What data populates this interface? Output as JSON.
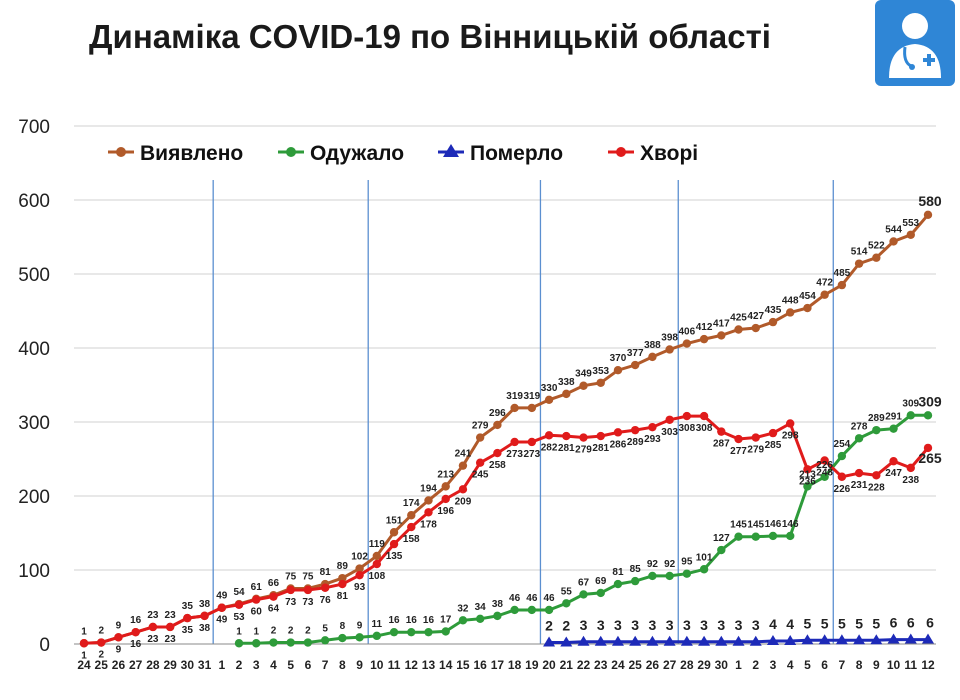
{
  "title": "Динаміка COVID-19 по Вінницькій області",
  "logo": {
    "icon": "doctor-icon",
    "bg_color": "#2f86d6"
  },
  "chart_data": {
    "type": "line",
    "title": "Динаміка COVID-19 по Вінницькій області",
    "xlabel": "",
    "ylabel": "",
    "ylim": [
      0,
      700
    ],
    "yticks": [
      0,
      100,
      200,
      300,
      400,
      500,
      600,
      700
    ],
    "grid": true,
    "legend_position": "top-left",
    "x": [
      "24",
      "25",
      "26",
      "27",
      "28",
      "29",
      "30",
      "31",
      "1",
      "2",
      "3",
      "4",
      "5",
      "6",
      "7",
      "8",
      "9",
      "10",
      "11",
      "12",
      "13",
      "14",
      "15",
      "16",
      "17",
      "18",
      "19",
      "20",
      "21",
      "22",
      "23",
      "24",
      "25",
      "26",
      "27",
      "28",
      "29",
      "30",
      "1",
      "2",
      "3",
      "4",
      "5",
      "6",
      "7",
      "8",
      "9",
      "10",
      "11",
      "12"
    ],
    "period_boundaries": [
      "1",
      "1",
      "20",
      "28",
      "7"
    ],
    "series": [
      {
        "name": "Виявлено",
        "color": "#b15a2a",
        "marker": "circle",
        "values": [
          1,
          2,
          9,
          16,
          23,
          23,
          35,
          38,
          49,
          54,
          61,
          66,
          75,
          75,
          81,
          89,
          102,
          119,
          151,
          174,
          194,
          213,
          241,
          279,
          296,
          319,
          319,
          330,
          338,
          349,
          353,
          370,
          377,
          388,
          398,
          406,
          412,
          417,
          425,
          427,
          435,
          448,
          454,
          472,
          485,
          514,
          522,
          544,
          553,
          580
        ]
      },
      {
        "name": "Одужало",
        "color": "#2e9b3a",
        "marker": "circle",
        "values": [
          null,
          null,
          null,
          null,
          null,
          null,
          null,
          null,
          null,
          1,
          1,
          2,
          2,
          2,
          5,
          8,
          9,
          11,
          16,
          16,
          16,
          17,
          32,
          34,
          38,
          46,
          46,
          46,
          55,
          67,
          69,
          81,
          85,
          92,
          92,
          95,
          101,
          127,
          145,
          145,
          146,
          146,
          213,
          226,
          254,
          278,
          289,
          291,
          309,
          309
        ]
      },
      {
        "name": "Померло",
        "color": "#1d2ab8",
        "marker": "triangle",
        "values": [
          null,
          null,
          null,
          null,
          null,
          null,
          null,
          null,
          null,
          null,
          null,
          null,
          null,
          null,
          null,
          null,
          null,
          null,
          null,
          null,
          null,
          null,
          null,
          null,
          null,
          null,
          null,
          2,
          2,
          3,
          3,
          3,
          3,
          3,
          3,
          3,
          3,
          3,
          3,
          3,
          4,
          4,
          5,
          5,
          5,
          5,
          5,
          6,
          6,
          6
        ]
      },
      {
        "name": "Хворі",
        "color": "#e01b1b",
        "marker": "circle",
        "values": [
          1,
          2,
          9,
          16,
          23,
          23,
          35,
          38,
          49,
          53,
          60,
          64,
          73,
          73,
          76,
          81,
          93,
          108,
          135,
          158,
          178,
          196,
          209,
          245,
          258,
          273,
          273,
          282,
          281,
          279,
          281,
          286,
          289,
          293,
          303,
          308,
          308,
          287,
          277,
          279,
          285,
          298,
          236,
          248,
          226,
          231,
          228,
          247,
          238,
          265
        ]
      }
    ]
  }
}
